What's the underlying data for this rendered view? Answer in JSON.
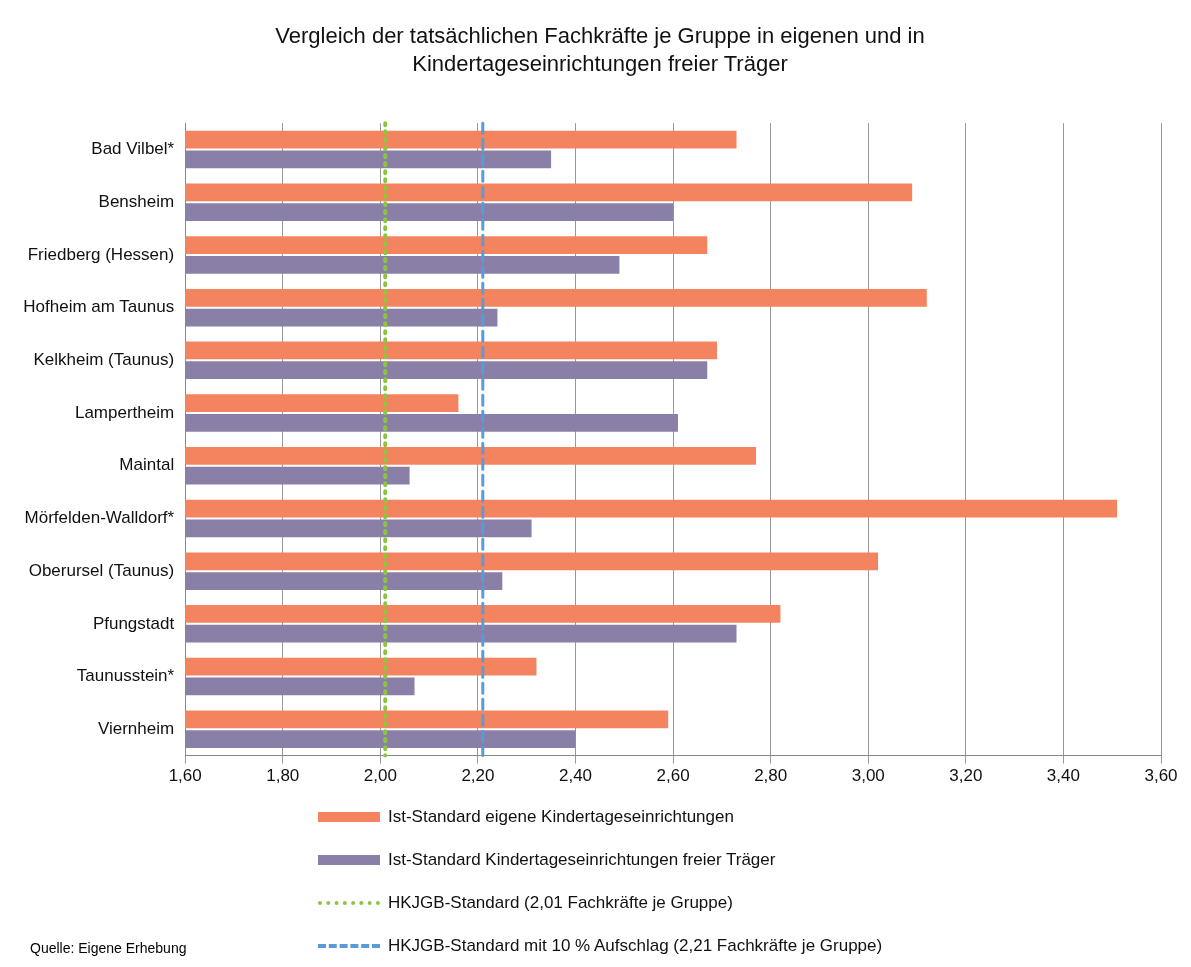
{
  "chart_data": {
    "type": "bar",
    "orientation": "horizontal",
    "title": "Vergleich der tatsächlichen Fachkräfte je Gruppe in eigenen und in Kindertageseinrichtungen freier Träger",
    "categories": [
      "Bad Vilbel*",
      "Bensheim",
      "Friedberg (Hessen)",
      "Hofheim am Taunus",
      "Kelkheim (Taunus)",
      "Lampertheim",
      "Maintal",
      "Mörfelden-Walldorf*",
      "Oberursel (Taunus)",
      "Pfungstadt",
      "Taunusstein*",
      "Viernheim"
    ],
    "series": [
      {
        "name": "Ist-Standard eigene Kindertageseinrichtungen",
        "color": "#f4845f",
        "values": [
          2.73,
          3.09,
          2.67,
          3.12,
          2.69,
          2.16,
          2.77,
          3.51,
          3.02,
          2.82,
          2.32,
          2.59
        ]
      },
      {
        "name": "Ist-Standard Kindertageseinrichtungen freier Träger",
        "color": "#8a7fa6",
        "values": [
          2.35,
          2.6,
          2.49,
          2.24,
          2.67,
          2.61,
          2.06,
          2.31,
          2.25,
          2.73,
          2.07,
          2.4
        ]
      }
    ],
    "ref_lines": [
      {
        "axis": "x",
        "value": 2.01,
        "label": "HKJGB-Standard (2,01 Fachkräfte je Gruppe)",
        "color": "#8cc63f",
        "line_style": "dotted"
      },
      {
        "axis": "x",
        "value": 2.21,
        "label": "HKJGB-Standard mit 10 % Aufschlag (2,21 Fachkräfte je Gruppe)",
        "color": "#5b9bd5",
        "line_style": "dashed"
      }
    ],
    "xlim": [
      1.6,
      3.6
    ],
    "xticks": [
      {
        "value": 1.6,
        "label": "1,60"
      },
      {
        "value": 1.8,
        "label": "1,80"
      },
      {
        "value": 2.0,
        "label": "2,00"
      },
      {
        "value": 2.2,
        "label": "2,20"
      },
      {
        "value": 2.4,
        "label": "2,40"
      },
      {
        "value": 2.6,
        "label": "2,60"
      },
      {
        "value": 2.8,
        "label": "2,80"
      },
      {
        "value": 3.0,
        "label": "3,00"
      },
      {
        "value": 3.2,
        "label": "3,20"
      },
      {
        "value": 3.4,
        "label": "3,40"
      },
      {
        "value": 3.6,
        "label": "3,60"
      }
    ],
    "grid": "x",
    "legend": "bottom",
    "annotations": [
      "Quelle: Eigene Erhebung"
    ]
  }
}
